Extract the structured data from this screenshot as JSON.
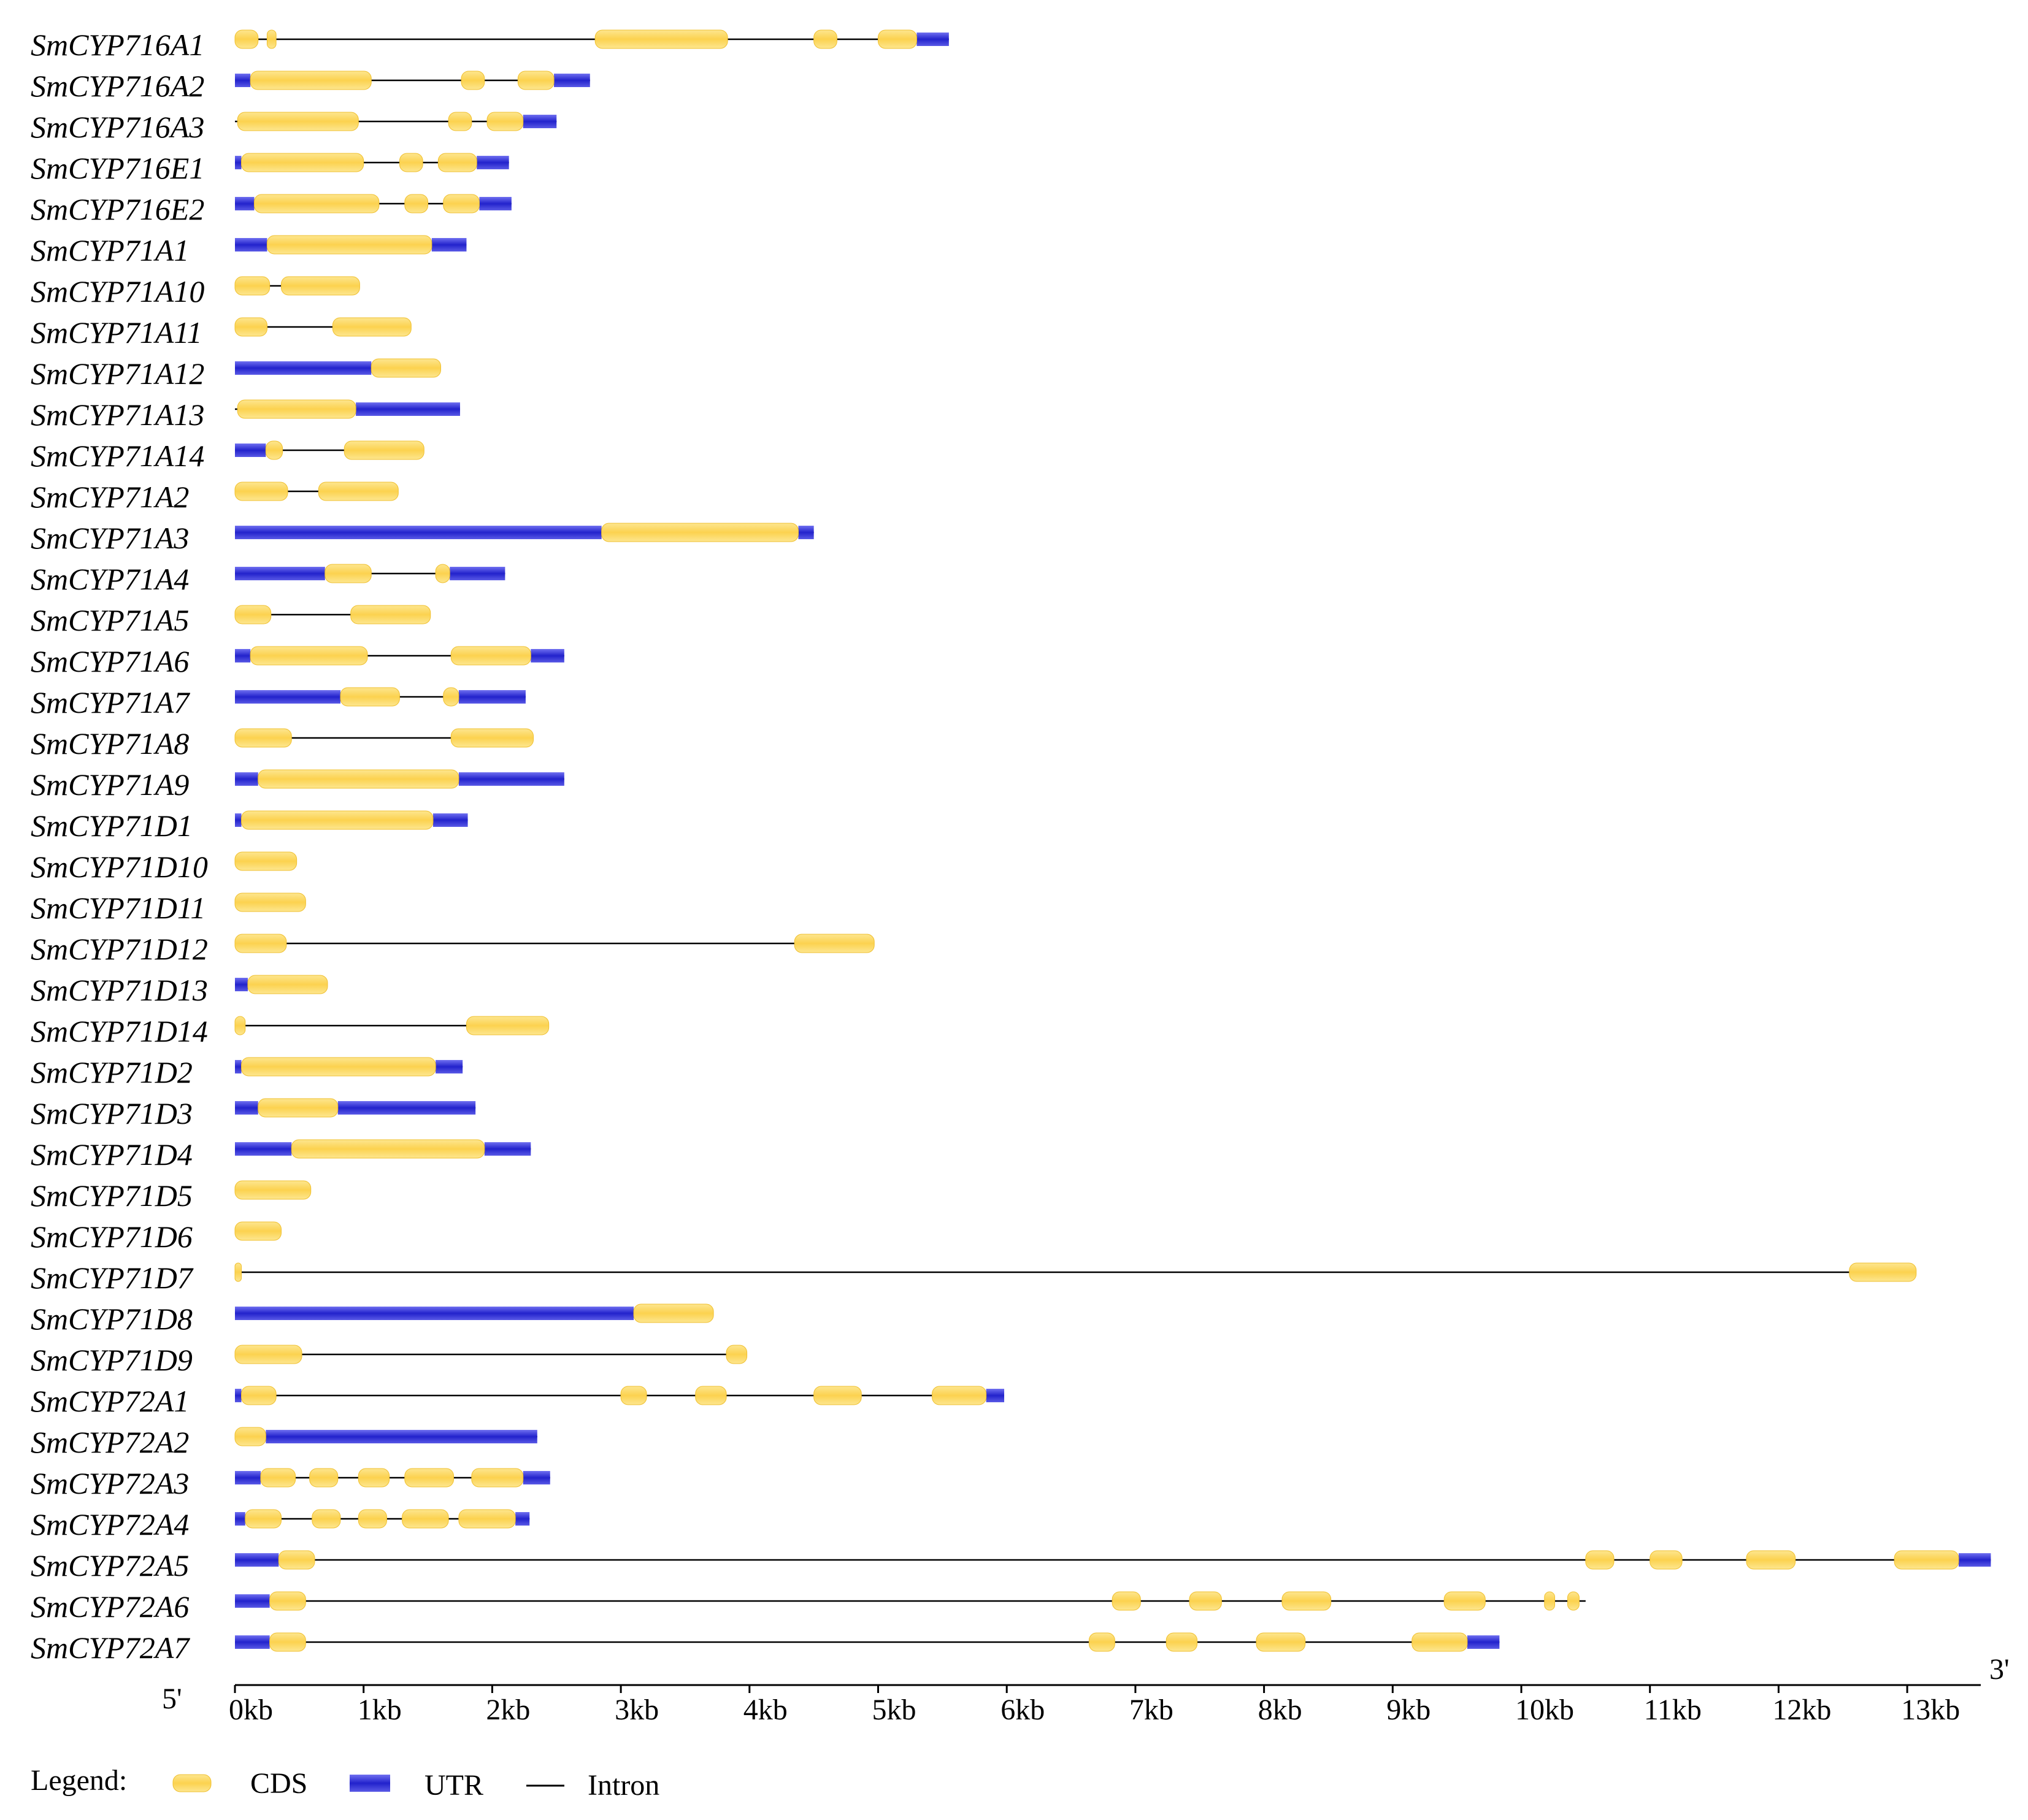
{
  "colors": {
    "cds": "#fcd863",
    "cds_edge": "#f5c733",
    "utr": "#3a3ad8",
    "utr_edge": "#1a1ab8",
    "intron": "#000000"
  },
  "axis": {
    "five_prime": "5'",
    "three_prime": "3'"
  },
  "legend": {
    "title": "Legend:",
    "cds": "CDS",
    "utr": "UTR",
    "intron": "Intron"
  },
  "chart_data": {
    "type": "gene-structure",
    "units": "kb",
    "xlim": [
      0,
      13.6
    ],
    "ticks": [
      "0kb",
      "1kb",
      "2kb",
      "3kb",
      "4kb",
      "5kb",
      "6kb",
      "7kb",
      "8kb",
      "9kb",
      "10kb",
      "11kb",
      "12kb",
      "13kb"
    ],
    "genes": [
      {
        "name": "SmCYP716A1",
        "span": [
          0,
          5.55
        ],
        "utr": [
          [
            5.3,
            5.55
          ]
        ],
        "cds": [
          [
            0,
            0.18
          ],
          [
            0.25,
            0.32
          ],
          [
            2.8,
            3.83
          ],
          [
            4.5,
            4.68
          ],
          [
            5.0,
            5.3
          ]
        ]
      },
      {
        "name": "SmCYP716A2",
        "span": [
          0,
          2.76
        ],
        "utr": [
          [
            0,
            0.12
          ],
          [
            2.48,
            2.76
          ]
        ],
        "cds": [
          [
            0.12,
            1.06
          ],
          [
            1.76,
            1.94
          ],
          [
            2.2,
            2.48
          ]
        ]
      },
      {
        "name": "SmCYP716A3",
        "span": [
          0,
          2.5
        ],
        "utr": [
          [
            2.24,
            2.5
          ]
        ],
        "cds": [
          [
            0.02,
            0.96
          ],
          [
            1.66,
            1.84
          ],
          [
            1.96,
            2.24
          ]
        ]
      },
      {
        "name": "SmCYP716E1",
        "span": [
          0,
          2.13
        ],
        "utr": [
          [
            0,
            0.05
          ],
          [
            1.88,
            2.13
          ]
        ],
        "cds": [
          [
            0.05,
            1.0
          ],
          [
            1.28,
            1.46
          ],
          [
            1.58,
            1.88
          ]
        ]
      },
      {
        "name": "SmCYP716E2",
        "span": [
          0,
          2.15
        ],
        "utr": [
          [
            0,
            0.15
          ],
          [
            1.9,
            2.15
          ]
        ],
        "cds": [
          [
            0.15,
            1.12
          ],
          [
            1.32,
            1.5
          ],
          [
            1.62,
            1.9
          ]
        ]
      },
      {
        "name": "SmCYP71A1",
        "span": [
          0,
          1.8
        ],
        "utr": [
          [
            0,
            0.25
          ],
          [
            1.53,
            1.8
          ]
        ],
        "cds": [
          [
            0.25,
            1.53
          ]
        ]
      },
      {
        "name": "SmCYP71A10",
        "span": [
          0,
          0.97
        ],
        "utr": [],
        "cds": [
          [
            0,
            0.27
          ],
          [
            0.36,
            0.97
          ]
        ]
      },
      {
        "name": "SmCYP71A11",
        "span": [
          0,
          1.37
        ],
        "utr": [],
        "cds": [
          [
            0,
            0.25
          ],
          [
            0.76,
            1.37
          ]
        ]
      },
      {
        "name": "SmCYP71A12",
        "span": [
          0,
          1.6
        ],
        "utr": [
          [
            0,
            1.06
          ]
        ],
        "cds": [
          [
            1.06,
            1.6
          ]
        ]
      },
      {
        "name": "SmCYP71A13",
        "span": [
          0,
          1.75
        ],
        "utr": [
          [
            0.94,
            1.75
          ]
        ],
        "cds": [
          [
            0.02,
            0.94
          ]
        ]
      },
      {
        "name": "SmCYP71A14",
        "span": [
          0,
          1.47
        ],
        "utr": [
          [
            0,
            0.24
          ]
        ],
        "cds": [
          [
            0.24,
            0.37
          ],
          [
            0.85,
            1.47
          ]
        ]
      },
      {
        "name": "SmCYP71A2",
        "span": [
          0,
          1.27
        ],
        "utr": [],
        "cds": [
          [
            0,
            0.41
          ],
          [
            0.65,
            1.27
          ]
        ]
      },
      {
        "name": "SmCYP71A3",
        "span": [
          0,
          4.5
        ],
        "utr": [
          [
            0,
            2.85
          ],
          [
            4.38,
            4.5
          ]
        ],
        "cds": [
          [
            2.85,
            4.38
          ]
        ]
      },
      {
        "name": "SmCYP71A4",
        "span": [
          0,
          2.1
        ],
        "utr": [
          [
            0,
            0.7
          ],
          [
            1.67,
            2.1
          ]
        ],
        "cds": [
          [
            0.7,
            1.06
          ],
          [
            1.56,
            1.67
          ]
        ]
      },
      {
        "name": "SmCYP71A5",
        "span": [
          0,
          1.52
        ],
        "utr": [],
        "cds": [
          [
            0,
            0.28
          ],
          [
            0.9,
            1.52
          ]
        ]
      },
      {
        "name": "SmCYP71A6",
        "span": [
          0,
          2.56
        ],
        "utr": [
          [
            0,
            0.12
          ],
          [
            2.3,
            2.56
          ]
        ],
        "cds": [
          [
            0.12,
            1.03
          ],
          [
            1.68,
            2.3
          ]
        ]
      },
      {
        "name": "SmCYP71A7",
        "span": [
          0,
          2.26
        ],
        "utr": [
          [
            0,
            0.82
          ],
          [
            1.74,
            2.26
          ]
        ],
        "cds": [
          [
            0.82,
            1.28
          ],
          [
            1.62,
            1.74
          ]
        ]
      },
      {
        "name": "SmCYP71A8",
        "span": [
          0,
          2.32
        ],
        "utr": [],
        "cds": [
          [
            0,
            0.44
          ],
          [
            1.68,
            2.32
          ]
        ]
      },
      {
        "name": "SmCYP71A9",
        "span": [
          0,
          2.56
        ],
        "utr": [
          [
            0,
            0.18
          ],
          [
            1.74,
            2.56
          ]
        ],
        "cds": [
          [
            0.18,
            1.74
          ]
        ]
      },
      {
        "name": "SmCYP71D1",
        "span": [
          0,
          1.81
        ],
        "utr": [
          [
            0,
            0.05
          ],
          [
            1.54,
            1.81
          ]
        ],
        "cds": [
          [
            0.05,
            1.54
          ]
        ]
      },
      {
        "name": "SmCYP71D10",
        "span": [
          0,
          0.48
        ],
        "utr": [],
        "cds": [
          [
            0,
            0.48
          ]
        ]
      },
      {
        "name": "SmCYP71D11",
        "span": [
          0,
          0.55
        ],
        "utr": [],
        "cds": [
          [
            0,
            0.55
          ]
        ]
      },
      {
        "name": "SmCYP71D12",
        "span": [
          0,
          4.97
        ],
        "utr": [],
        "cds": [
          [
            0,
            0.4
          ],
          [
            4.35,
            4.97
          ]
        ]
      },
      {
        "name": "SmCYP71D13",
        "span": [
          0,
          0.72
        ],
        "utr": [
          [
            0,
            0.1
          ]
        ],
        "cds": [
          [
            0.1,
            0.72
          ]
        ]
      },
      {
        "name": "SmCYP71D14",
        "span": [
          0,
          2.44
        ],
        "utr": [],
        "cds": [
          [
            0,
            0.08
          ],
          [
            1.8,
            2.44
          ]
        ]
      },
      {
        "name": "SmCYP71D2",
        "span": [
          0,
          1.77
        ],
        "utr": [
          [
            0,
            0.05
          ],
          [
            1.56,
            1.77
          ]
        ],
        "cds": [
          [
            0.05,
            1.56
          ]
        ]
      },
      {
        "name": "SmCYP71D3",
        "span": [
          0,
          1.87
        ],
        "utr": [
          [
            0,
            0.18
          ],
          [
            0.8,
            1.87
          ]
        ],
        "cds": [
          [
            0.18,
            0.8
          ]
        ]
      },
      {
        "name": "SmCYP71D4",
        "span": [
          0,
          2.3
        ],
        "utr": [
          [
            0,
            0.44
          ],
          [
            1.94,
            2.3
          ]
        ],
        "cds": [
          [
            0.44,
            1.94
          ]
        ]
      },
      {
        "name": "SmCYP71D5",
        "span": [
          0,
          0.59
        ],
        "utr": [],
        "cds": [
          [
            0,
            0.59
          ]
        ]
      },
      {
        "name": "SmCYP71D6",
        "span": [
          0,
          0.36
        ],
        "utr": [],
        "cds": [
          [
            0,
            0.36
          ]
        ]
      },
      {
        "name": "SmCYP71D7",
        "span": [
          0,
          13.07
        ],
        "utr": [],
        "cds": [
          [
            0,
            0.05
          ],
          [
            12.55,
            13.07
          ]
        ]
      },
      {
        "name": "SmCYP71D8",
        "span": [
          0,
          3.72
        ],
        "utr": [
          [
            0,
            3.1
          ]
        ],
        "cds": [
          [
            3.1,
            3.72
          ]
        ]
      },
      {
        "name": "SmCYP71D9",
        "span": [
          0,
          3.98
        ],
        "utr": [],
        "cds": [
          [
            0,
            0.52
          ],
          [
            3.82,
            3.98
          ]
        ]
      },
      {
        "name": "SmCYP72A1",
        "span": [
          0,
          5.98
        ],
        "utr": [
          [
            0,
            0.05
          ],
          [
            5.84,
            5.98
          ]
        ],
        "cds": [
          [
            0.05,
            0.32
          ],
          [
            3.0,
            3.2
          ],
          [
            3.58,
            3.82
          ],
          [
            4.5,
            4.87
          ],
          [
            5.42,
            5.84
          ]
        ]
      },
      {
        "name": "SmCYP72A2",
        "span": [
          0,
          2.35
        ],
        "utr": [
          [
            0.24,
            2.35
          ]
        ],
        "cds": [
          [
            0,
            0.24
          ]
        ]
      },
      {
        "name": "SmCYP72A3",
        "span": [
          0,
          2.45
        ],
        "utr": [
          [
            0,
            0.2
          ],
          [
            2.24,
            2.45
          ]
        ],
        "cds": [
          [
            0.2,
            0.47
          ],
          [
            0.58,
            0.8
          ],
          [
            0.96,
            1.2
          ],
          [
            1.32,
            1.7
          ],
          [
            1.84,
            2.24
          ]
        ]
      },
      {
        "name": "SmCYP72A4",
        "span": [
          0,
          2.29
        ],
        "utr": [
          [
            0,
            0.08
          ],
          [
            2.18,
            2.29
          ]
        ],
        "cds": [
          [
            0.08,
            0.36
          ],
          [
            0.6,
            0.82
          ],
          [
            0.96,
            1.18
          ],
          [
            1.3,
            1.66
          ],
          [
            1.74,
            2.18
          ]
        ]
      },
      {
        "name": "SmCYP72A5",
        "span": [
          0,
          13.65
        ],
        "utr": [
          [
            0,
            0.34
          ],
          [
            13.4,
            13.65
          ]
        ],
        "cds": [
          [
            0.34,
            0.62
          ],
          [
            10.5,
            10.72
          ],
          [
            11.0,
            11.25
          ],
          [
            11.75,
            12.13
          ],
          [
            12.9,
            13.4
          ]
        ]
      },
      {
        "name": "SmCYP72A6",
        "span": [
          0,
          10.5
        ],
        "utr": [
          [
            0,
            0.27
          ]
        ],
        "cds": [
          [
            0.27,
            0.55
          ],
          [
            6.82,
            7.04
          ],
          [
            7.42,
            7.67
          ],
          [
            8.14,
            8.52
          ],
          [
            9.4,
            9.72
          ],
          [
            10.18,
            10.26
          ],
          [
            10.36,
            10.45
          ]
        ]
      },
      {
        "name": "SmCYP72A7",
        "span": [
          0,
          9.83
        ],
        "utr": [
          [
            0,
            0.27
          ],
          [
            9.58,
            9.83
          ]
        ],
        "cds": [
          [
            0.27,
            0.55
          ],
          [
            6.64,
            6.84
          ],
          [
            7.24,
            7.48
          ],
          [
            7.94,
            8.32
          ],
          [
            9.15,
            9.58
          ]
        ]
      }
    ]
  }
}
